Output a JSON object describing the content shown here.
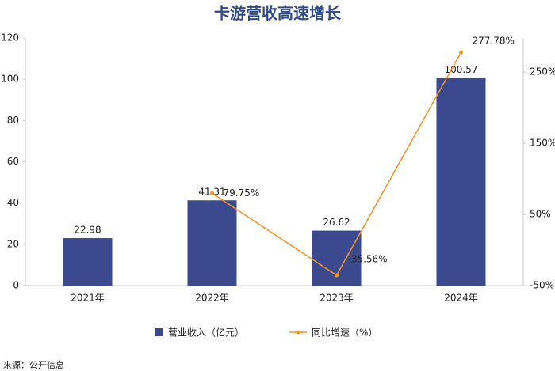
{
  "chart_data": {
    "type": "bar_line",
    "title": "卡游营收高速增长",
    "categories": [
      "2021年",
      "2022年",
      "2023年",
      "2024年"
    ],
    "series": [
      {
        "name": "营业收入（亿元）",
        "type": "bar",
        "color": "#3b4a8f",
        "values": [
          22.98,
          41.31,
          26.62,
          100.57
        ]
      },
      {
        "name": "同比增速（%）",
        "type": "line",
        "axis": "y2",
        "color": "#f7931e",
        "values": [
          null,
          79.75,
          -35.56,
          277.78
        ],
        "value_labels": [
          null,
          "79.75%",
          "-35.56%",
          "277.78%"
        ]
      }
    ],
    "ylim": [
      0,
      120
    ],
    "yticks": [
      0,
      20,
      40,
      60,
      80,
      100,
      120
    ],
    "y2lim": [
      -50,
      298
    ],
    "y2ticks": [
      {
        "value": -50,
        "label": "-50%"
      },
      {
        "value": 50,
        "label": "50%"
      },
      {
        "value": 150,
        "label": "150%"
      },
      {
        "value": 250,
        "label": "250%"
      }
    ],
    "legend": "bottom",
    "source": "来源：公开信息"
  }
}
